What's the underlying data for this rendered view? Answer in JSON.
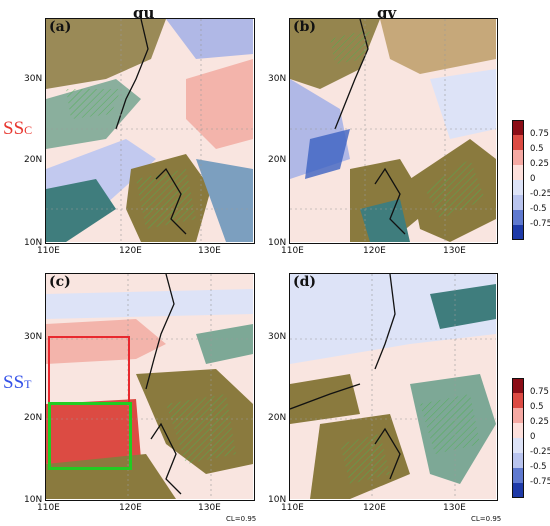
{
  "columns": [
    "qu",
    "qv"
  ],
  "rows": [
    {
      "label_main": "SS",
      "label_sub": "C",
      "color": "#e8372f"
    },
    {
      "label_main": "SS",
      "label_sub": "T",
      "color": "#3552e8"
    }
  ],
  "panels": [
    {
      "label": "(a)"
    },
    {
      "label": "(b)"
    },
    {
      "label": "(c)"
    },
    {
      "label": "(d)"
    }
  ],
  "axes": {
    "x_ticks": [
      "110E",
      "120E",
      "130E"
    ],
    "y_ticks": [
      "10N",
      "20N",
      "30N"
    ]
  },
  "colorbar": {
    "labels": [
      "0.75",
      "0.5",
      "0.25",
      "0",
      "-0.25",
      "-0.5",
      "-0.75"
    ],
    "colors": [
      "#8b0d16",
      "#dc4b43",
      "#f5a9a3",
      "#fde0dc",
      "#dde3f7",
      "#b9c4ee",
      "#5f79cf",
      "#1e3aa8"
    ]
  },
  "significance": "CL=0.95",
  "boxes": [
    {
      "color": "#e8282e",
      "lon": [
        110,
        120
      ],
      "lat": [
        22,
        30
      ]
    },
    {
      "color": "#22cc22",
      "lon": [
        110,
        120
      ],
      "lat": [
        14,
        22
      ]
    }
  ]
}
